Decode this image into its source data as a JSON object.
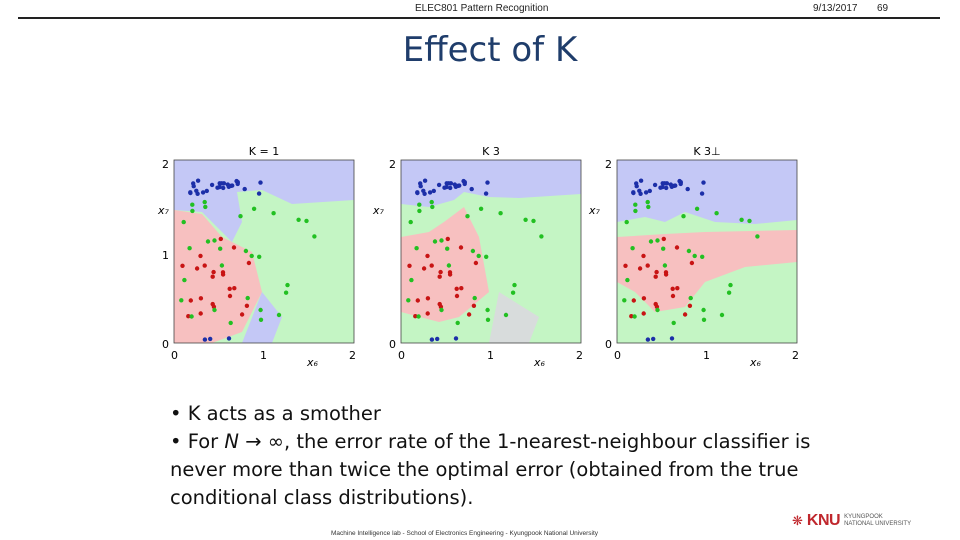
{
  "header": {
    "course": "ELEC801 Pattern Recognition",
    "date": "9/13/2017",
    "page": "69"
  },
  "title": "Effect of K",
  "figure": {
    "panels": [
      {
        "label": "K = 1"
      },
      {
        "label": "K    3"
      },
      {
        "label": "K    3⊥"
      }
    ],
    "axis": {
      "xlabel": "x₆",
      "ylabel": "x₇",
      "xticks": [
        "0",
        "1",
        "2"
      ],
      "yticks": [
        "0",
        "1",
        "2"
      ]
    },
    "colors": {
      "class_blue": "#1c2fa8",
      "class_red": "#c81414",
      "class_green": "#22c022",
      "region_blue": "#c4c8f6",
      "region_red": "#f7c0c0",
      "region_green": "#c4f5c4"
    }
  },
  "bullets": {
    "b1": "• K acts as a smother",
    "b2_pre": "• For ",
    "b2_var": "N → ∞",
    "b2_post": ", the error rate of the 1-nearest-neighbour classifier is never more than twice the optimal error (obtained from the true conditional class distributions)."
  },
  "footer": "Machine Intelligence lab - School of Electronics Engineering - Kyungpook National University",
  "logo": {
    "brand": "KNU",
    "sub1": "KYUNGPOOK",
    "sub2": "NATIONAL UNIVERSITY"
  }
}
